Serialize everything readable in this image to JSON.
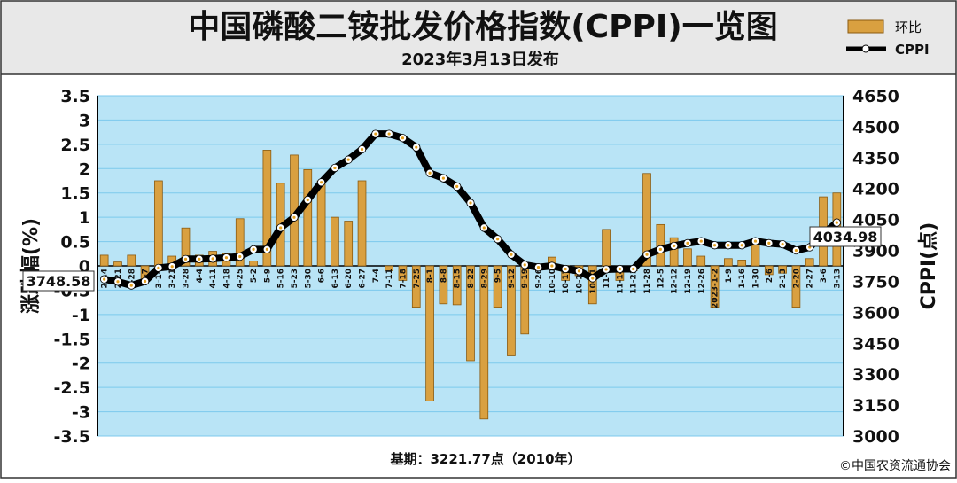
{
  "header": {
    "title": "中国磷酸二铵批发价格指数(CPPI)一览图",
    "subtitle": "2023年3月13日发布"
  },
  "legend": {
    "bar_label": "环比",
    "line_label": "CPPI"
  },
  "footer": {
    "base_note": "基期：3221.77点（2010年）",
    "copyright": "©中国农资流通协会"
  },
  "colors": {
    "plot_bg": "#b9e4f6",
    "grid": "#7cc9ec",
    "bar": "#d9a040",
    "bar_dark": "#8a5a10",
    "line": "#000000",
    "marker": "#ffffff",
    "marker_dot": "#e3a020"
  },
  "chart_data": {
    "type": "bar+line",
    "x": [
      "2-14",
      "2-21",
      "2-28",
      "3-7",
      "3-14",
      "3-21",
      "3-28",
      "4-4",
      "4-11",
      "4-18",
      "4-25",
      "5-2",
      "5-9",
      "5-16",
      "5-23",
      "5-30",
      "6-6",
      "6-13",
      "6-20",
      "6-27",
      "7-4",
      "7-11",
      "7-18",
      "7-25",
      "8-1",
      "8-8",
      "8-15",
      "8-22",
      "8-29",
      "9-5",
      "9-12",
      "9-19",
      "9-26",
      "10-10",
      "10-17",
      "10-24",
      "10-31",
      "11-7",
      "11-14",
      "11-21",
      "11-28",
      "12-5",
      "12-12",
      "12-19",
      "12-26",
      "2023-1-2",
      "1-9",
      "1-16",
      "1-30",
      "2-6",
      "2-13",
      "2-20",
      "2-27",
      "3-6",
      "3-13"
    ],
    "series": [
      {
        "name": "环比",
        "axis": "left",
        "type": "bar",
        "values": [
          0.22,
          0.08,
          0.22,
          -0.3,
          1.75,
          0.2,
          0.78,
          0.22,
          0.3,
          0.25,
          0.97,
          0.1,
          2.38,
          1.7,
          2.28,
          1.98,
          1.75,
          1.0,
          0.92,
          1.75,
          0.0,
          -0.1,
          -0.3,
          -0.85,
          -2.78,
          -0.78,
          -0.8,
          -1.95,
          -3.15,
          -0.85,
          -1.85,
          -1.4,
          -0.05,
          0.18,
          -0.3,
          -0.2,
          -0.78,
          0.75,
          -0.3,
          -0.1,
          1.9,
          0.85,
          0.58,
          0.35,
          0.2,
          -0.85,
          0.15,
          0.12,
          0.45,
          -0.18,
          -0.15,
          -0.85,
          0.15,
          1.42,
          1.5
        ]
      },
      {
        "name": "CPPI",
        "axis": "right",
        "type": "line",
        "values": [
          3760,
          3748.58,
          3730,
          3750,
          3815,
          3822,
          3858,
          3858,
          3860,
          3865,
          3870,
          3905,
          3905,
          4010,
          4060,
          4145,
          4230,
          4300,
          4340,
          4390,
          4465,
          4465,
          4445,
          4400,
          4275,
          4250,
          4210,
          4130,
          4010,
          3955,
          3880,
          3830,
          3818,
          3825,
          3810,
          3800,
          3765,
          3808,
          3810,
          3810,
          3880,
          3905,
          3922,
          3935,
          3945,
          3925,
          3925,
          3925,
          3945,
          3935,
          3930,
          3900,
          3915,
          3980,
          4034.98
        ]
      }
    ],
    "y_left": {
      "label": "涨跌幅(%)",
      "min": -3.5,
      "max": 3.5,
      "step": 0.5
    },
    "y_right": {
      "label": "CPPI(点)",
      "min": 3000,
      "max": 4650,
      "step": 150
    },
    "annotations": {
      "start": "3748.58",
      "end": "4034.98"
    },
    "grid": true,
    "legend_position": "top-right"
  }
}
